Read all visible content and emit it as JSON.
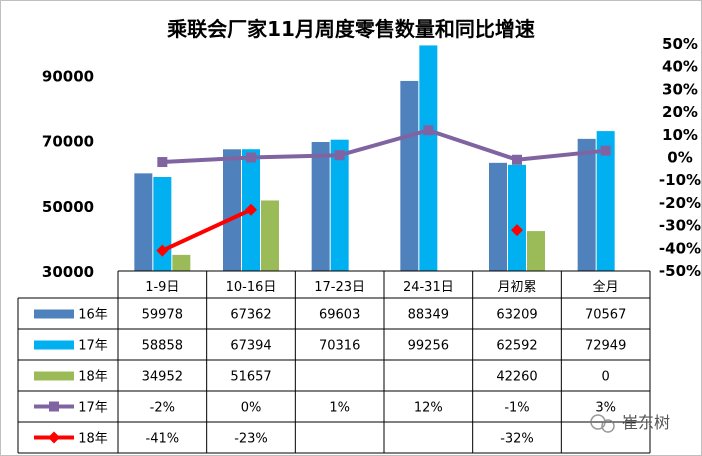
{
  "chart_data": {
    "type": "bar",
    "title": "乘联会厂家11月周度零售数量和同比增速",
    "categories": [
      "1-9日",
      "10-16日",
      "17-23日",
      "24-31日",
      "月初累",
      "全月"
    ],
    "y_left": {
      "ticks": [
        "30000",
        "50000",
        "70000",
        "90000"
      ],
      "ylim": [
        30000,
        100000
      ]
    },
    "y_right": {
      "ticks": [
        "50%",
        "40%",
        "30%",
        "20%",
        "10%",
        "0%",
        "-10%",
        "-20%",
        "-30%",
        "-40%",
        "-50%"
      ],
      "ylim": [
        -50,
        50
      ]
    },
    "series": [
      {
        "name": "16年",
        "kind": "bar",
        "color": "#4f81bd",
        "values": [
          59978,
          67362,
          69603,
          88349,
          63209,
          70567
        ],
        "labels": [
          "59978",
          "67362",
          "69603",
          "88349",
          "63209",
          "70567"
        ]
      },
      {
        "name": "17年",
        "kind": "bar",
        "color": "#00b0f0",
        "values": [
          58858,
          67394,
          70316,
          99256,
          62592,
          72949
        ],
        "labels": [
          "58858",
          "67394",
          "70316",
          "99256",
          "62592",
          "72949"
        ]
      },
      {
        "name": "18年",
        "kind": "bar",
        "color": "#9bbb59",
        "values": [
          34952,
          51657,
          null,
          null,
          42260,
          0
        ],
        "labels": [
          "34952",
          "51657",
          "",
          "",
          "42260",
          "0"
        ]
      },
      {
        "name": "17年",
        "kind": "line",
        "color": "#8064a2",
        "values": [
          -2,
          0,
          1,
          12,
          -1,
          3
        ],
        "labels": [
          "-2%",
          "0%",
          "1%",
          "12%",
          "-1%",
          "3%"
        ]
      },
      {
        "name": "18年",
        "kind": "line",
        "color": "#ff0000",
        "values": [
          -41,
          -23,
          null,
          null,
          -32,
          null
        ],
        "labels": [
          "-41%",
          "-23%",
          "",
          "",
          "-32%",
          ""
        ]
      }
    ]
  },
  "watermark": {
    "text": "崔东树"
  }
}
